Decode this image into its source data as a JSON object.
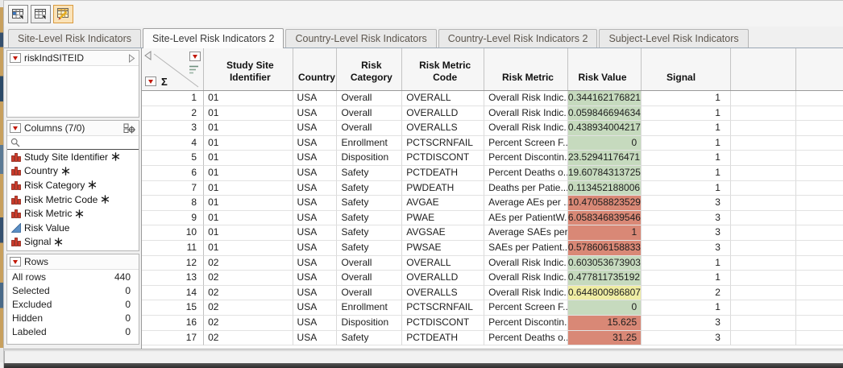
{
  "window": {
    "toolbar": {
      "buttons": [
        {
          "icon": "data-table-blue-cell-icon"
        },
        {
          "icon": "data-table-icon"
        },
        {
          "icon": "edit-data-table-pencil-icon",
          "selected": true
        }
      ]
    },
    "tabs": [
      {
        "label": "Site-Level Risk Indicators",
        "active": false
      },
      {
        "label": "Site-Level Risk Indicators 2",
        "active": true
      },
      {
        "label": "Country-Level Risk Indicators",
        "active": false
      },
      {
        "label": "Country-Level Risk Indicators 2",
        "active": false
      },
      {
        "label": "Subject-Level Risk Indicators",
        "active": false
      }
    ]
  },
  "sidebar": {
    "table_panel": {
      "title": "riskIndSITEID"
    },
    "columns_panel": {
      "title": "Columns (7/0)",
      "items": [
        {
          "label": "Study Site Identifier",
          "type": "nominal",
          "asterisk": true
        },
        {
          "label": "Country",
          "type": "nominal",
          "asterisk": true
        },
        {
          "label": "Risk Category",
          "type": "nominal",
          "asterisk": true
        },
        {
          "label": "Risk Metric Code",
          "type": "nominal",
          "asterisk": true
        },
        {
          "label": "Risk Metric",
          "type": "nominal",
          "asterisk": true
        },
        {
          "label": "Risk Value",
          "type": "continuous",
          "asterisk": false
        },
        {
          "label": "Signal",
          "type": "nominal",
          "asterisk": true
        }
      ]
    },
    "rows_panel": {
      "title": "Rows",
      "stats": [
        {
          "label": "All rows",
          "value": "440"
        },
        {
          "label": "Selected",
          "value": "0"
        },
        {
          "label": "Excluded",
          "value": "0"
        },
        {
          "label": "Hidden",
          "value": "0"
        },
        {
          "label": "Labeled",
          "value": "0"
        }
      ]
    }
  },
  "colors": {
    "risk_green": "#C6DABE",
    "risk_red": "#D98876",
    "risk_yellow": "#EFEDA4"
  },
  "table": {
    "headers": {
      "site": "Study Site\nIdentifier",
      "country": "Country",
      "category": "Risk Category",
      "code": "Risk Metric Code",
      "metric": "Risk Metric",
      "value": "Risk Value",
      "signal": "Signal"
    },
    "rows": [
      {
        "n": "1",
        "site": "01",
        "country": "USA",
        "category": "Overall",
        "code": "OVERALL",
        "metric": "Overall Risk Indic...",
        "value": "0.344162176821",
        "color": "green",
        "signal": "1"
      },
      {
        "n": "2",
        "site": "01",
        "country": "USA",
        "category": "Overall",
        "code": "OVERALLD",
        "metric": "Overall Risk Indic...",
        "value": "0.059846694634",
        "color": "green",
        "signal": "1"
      },
      {
        "n": "3",
        "site": "01",
        "country": "USA",
        "category": "Overall",
        "code": "OVERALLS",
        "metric": "Overall Risk Indic...",
        "value": "0.438934004217",
        "color": "green",
        "signal": "1"
      },
      {
        "n": "4",
        "site": "01",
        "country": "USA",
        "category": "Enrollment",
        "code": "PCTSCRNFAIL",
        "metric": "Percent Screen F...",
        "value": "0",
        "color": "green",
        "signal": "1"
      },
      {
        "n": "5",
        "site": "01",
        "country": "USA",
        "category": "Disposition",
        "code": "PCTDISCONT",
        "metric": "Percent Discontin...",
        "value": "23.52941176471",
        "color": "green",
        "signal": "1"
      },
      {
        "n": "6",
        "site": "01",
        "country": "USA",
        "category": "Safety",
        "code": "PCTDEATH",
        "metric": "Percent Deaths o...",
        "value": "19.60784313725",
        "color": "green",
        "signal": "1"
      },
      {
        "n": "7",
        "site": "01",
        "country": "USA",
        "category": "Safety",
        "code": "PWDEATH",
        "metric": "Deaths per Patie...",
        "value": "0.113452188006",
        "color": "green",
        "signal": "1"
      },
      {
        "n": "8",
        "site": "01",
        "country": "USA",
        "category": "Safety",
        "code": "AVGAE",
        "metric": "Average AEs per ...",
        "value": "10.47058823529",
        "color": "red",
        "signal": "3"
      },
      {
        "n": "9",
        "site": "01",
        "country": "USA",
        "category": "Safety",
        "code": "PWAE",
        "metric": "AEs per PatientW...",
        "value": "6.058346839546",
        "color": "red",
        "signal": "3"
      },
      {
        "n": "10",
        "site": "01",
        "country": "USA",
        "category": "Safety",
        "code": "AVGSAE",
        "metric": "Average SAEs per...",
        "value": "1",
        "color": "red",
        "signal": "3"
      },
      {
        "n": "11",
        "site": "01",
        "country": "USA",
        "category": "Safety",
        "code": "PWSAE",
        "metric": "SAEs per Patient...",
        "value": "0.578606158833",
        "color": "red",
        "signal": "3"
      },
      {
        "n": "12",
        "site": "02",
        "country": "USA",
        "category": "Overall",
        "code": "OVERALL",
        "metric": "Overall Risk Indic...",
        "value": "0.603053673903",
        "color": "green",
        "signal": "1"
      },
      {
        "n": "13",
        "site": "02",
        "country": "USA",
        "category": "Overall",
        "code": "OVERALLD",
        "metric": "Overall Risk Indic...",
        "value": "0.477811735192",
        "color": "green",
        "signal": "1"
      },
      {
        "n": "14",
        "site": "02",
        "country": "USA",
        "category": "Overall",
        "code": "OVERALLS",
        "metric": "Overall Risk Indic...",
        "value": "0.644800986807",
        "color": "yellow",
        "signal": "2"
      },
      {
        "n": "15",
        "site": "02",
        "country": "USA",
        "category": "Enrollment",
        "code": "PCTSCRNFAIL",
        "metric": "Percent Screen F...",
        "value": "0",
        "color": "green",
        "signal": "1"
      },
      {
        "n": "16",
        "site": "02",
        "country": "USA",
        "category": "Disposition",
        "code": "PCTDISCONT",
        "metric": "Percent Discontin...",
        "value": "15.625",
        "color": "red",
        "signal": "3"
      },
      {
        "n": "17",
        "site": "02",
        "country": "USA",
        "category": "Safety",
        "code": "PCTDEATH",
        "metric": "Percent Deaths o...",
        "value": "31.25",
        "color": "red",
        "signal": "3"
      }
    ]
  }
}
